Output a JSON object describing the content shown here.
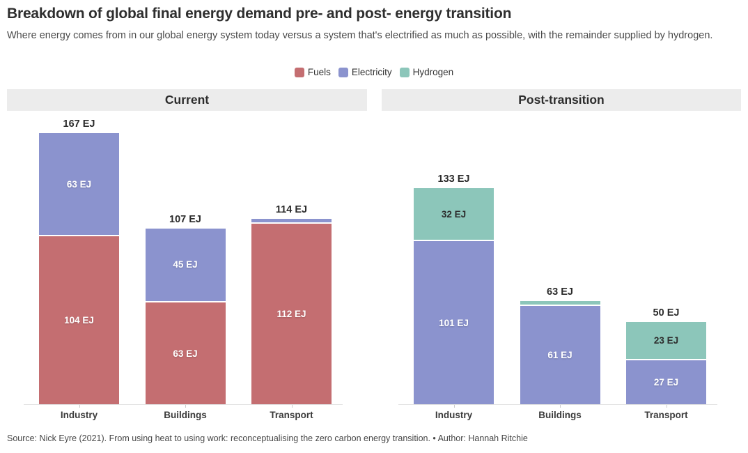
{
  "header": {
    "title": "Breakdown of global final energy demand pre- and post- energy transition",
    "subtitle": "Where energy comes from in our global energy system today versus a system that's electrified as much as possible, with the remainder supplied by hydrogen."
  },
  "legend": [
    {
      "label": "Fuels",
      "color": "#c46e71"
    },
    {
      "label": "Electricity",
      "color": "#8b93ce"
    },
    {
      "label": "Hydrogen",
      "color": "#8cc6ba"
    }
  ],
  "chart_data": {
    "type": "bar",
    "stacked": true,
    "unit": "EJ",
    "grid": false,
    "legend_position": "top-center",
    "ylim": [
      0,
      175
    ],
    "categories": [
      "Industry",
      "Buildings",
      "Transport"
    ],
    "panels": [
      {
        "title": "Current",
        "totals": [
          167,
          107,
          114
        ],
        "series": [
          {
            "name": "Fuels",
            "values": [
              104,
              63,
              112
            ]
          },
          {
            "name": "Electricity",
            "values": [
              63,
              45,
              2
            ]
          },
          {
            "name": "Hydrogen",
            "values": [
              0,
              0,
              0
            ]
          }
        ]
      },
      {
        "title": "Post-transition",
        "totals": [
          133,
          63,
          50
        ],
        "series": [
          {
            "name": "Fuels",
            "values": [
              0,
              0,
              0
            ]
          },
          {
            "name": "Electricity",
            "values": [
              101,
              61,
              27
            ]
          },
          {
            "name": "Hydrogen",
            "values": [
              32,
              2,
              23
            ]
          }
        ]
      }
    ]
  },
  "footer": {
    "text": "Source: Nick Eyre (2021). From using heat to using work: reconceptualising the zero carbon energy transition. • Author: Hannah Ritchie"
  }
}
